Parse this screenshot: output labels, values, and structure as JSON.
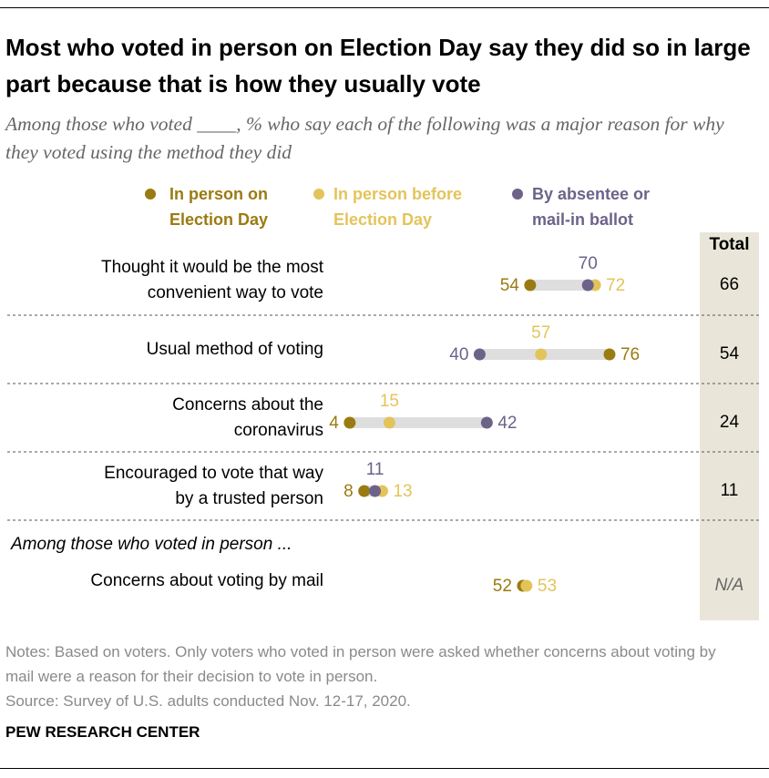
{
  "header": {
    "title": "Most who voted in person on Election Day say they did so in large part because that is how they usually vote",
    "subtitle": "Among those who voted ____, % who say each of the following was a major reason for why they voted using the method they did"
  },
  "chart_data": {
    "type": "dot",
    "categories": [
      "Thought it would be the most convenient way to vote",
      "Usual method of voting",
      "Concerns about the coronavirus",
      "Encouraged to vote that way by a trusted person",
      "Concerns about voting by mail"
    ],
    "series": [
      {
        "name": "In person on Election Day",
        "color": "#9a7b12",
        "values": [
          54,
          76,
          4,
          8,
          52
        ]
      },
      {
        "name": "In person before Election Day",
        "color": "#e3c45b",
        "values": [
          72,
          57,
          15,
          13,
          53
        ]
      },
      {
        "name": "By absentee or mail-in ballot",
        "color": "#6d6389",
        "values": [
          70,
          40,
          42,
          11,
          null
        ]
      }
    ],
    "xlim": [
      0,
      100
    ],
    "subgroup_label": "Among those who voted in person ...",
    "totals": {
      "title": "Total",
      "values": [
        66,
        54,
        24,
        11,
        null
      ],
      "missing_label": "N/A"
    }
  },
  "notes": "Notes: Based on voters. Only voters who voted in person were asked whether concerns about voting by mail were a reason for their decision to vote in person.",
  "source": "Source: Survey of U.S. adults conducted Nov. 12-17, 2020.",
  "footer": "PEW RESEARCH CENTER"
}
